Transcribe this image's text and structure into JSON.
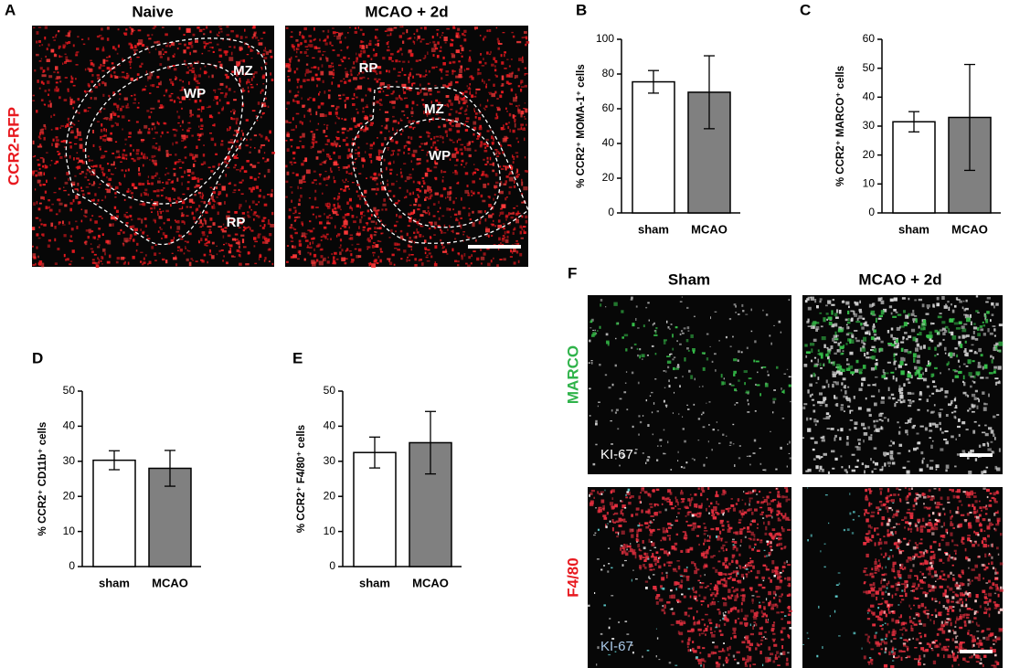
{
  "figure": {
    "A": {
      "label": "A",
      "titles": [
        "Naive",
        "MCAO + 2d"
      ],
      "stain": "CCR2-RFP",
      "regions_naive": [
        "MZ",
        "WP",
        "RP"
      ],
      "regions_mcao": [
        "RP",
        "MZ",
        "WP"
      ]
    },
    "F": {
      "label": "F",
      "titles": [
        "Sham",
        "MCAO + 2d"
      ],
      "stain_top": "MARCO",
      "stain_bottom": "F4/80",
      "ki_top": "KI-67",
      "ki_bottom": "KI-67"
    }
  },
  "chart_data": [
    {
      "type": "bar",
      "panel_label": "B",
      "ylabel": "% CCR2⁺ MOMA-1⁺ cells",
      "categories": [
        "sham",
        "MCAO"
      ],
      "values": [
        75.5,
        69.5
      ],
      "errors": [
        6.5,
        21
      ],
      "colors": [
        "#ffffff",
        "#808080"
      ],
      "ylim": [
        0,
        100
      ],
      "yticks": [
        0,
        20,
        40,
        60,
        80,
        100
      ]
    },
    {
      "type": "bar",
      "panel_label": "C",
      "ylabel": "% CCR2⁺ MARCO⁺ cells",
      "categories": [
        "sham",
        "MCAO"
      ],
      "values": [
        31.5,
        33
      ],
      "errors": [
        3.5,
        18.3
      ],
      "colors": [
        "#ffffff",
        "#808080"
      ],
      "ylim": [
        0,
        60
      ],
      "yticks": [
        0,
        10,
        20,
        30,
        40,
        50,
        60
      ]
    },
    {
      "type": "bar",
      "panel_label": "D",
      "ylabel": "% CCR2⁺ CD11b⁺ cells",
      "categories": [
        "sham",
        "MCAO"
      ],
      "values": [
        30.3,
        28
      ],
      "errors": [
        2.7,
        5.1
      ],
      "colors": [
        "#ffffff",
        "#808080"
      ],
      "ylim": [
        0,
        50
      ],
      "yticks": [
        0,
        10,
        20,
        30,
        40,
        50
      ]
    },
    {
      "type": "bar",
      "panel_label": "E",
      "ylabel": "% CCR2⁺ F4/80⁺ cells",
      "categories": [
        "sham",
        "MCAO"
      ],
      "values": [
        32.5,
        35.3
      ],
      "errors": [
        4.4,
        8.9
      ],
      "colors": [
        "#ffffff",
        "#808080"
      ],
      "ylim": [
        0,
        50
      ],
      "yticks": [
        0,
        10,
        20,
        30,
        40,
        50
      ]
    }
  ]
}
